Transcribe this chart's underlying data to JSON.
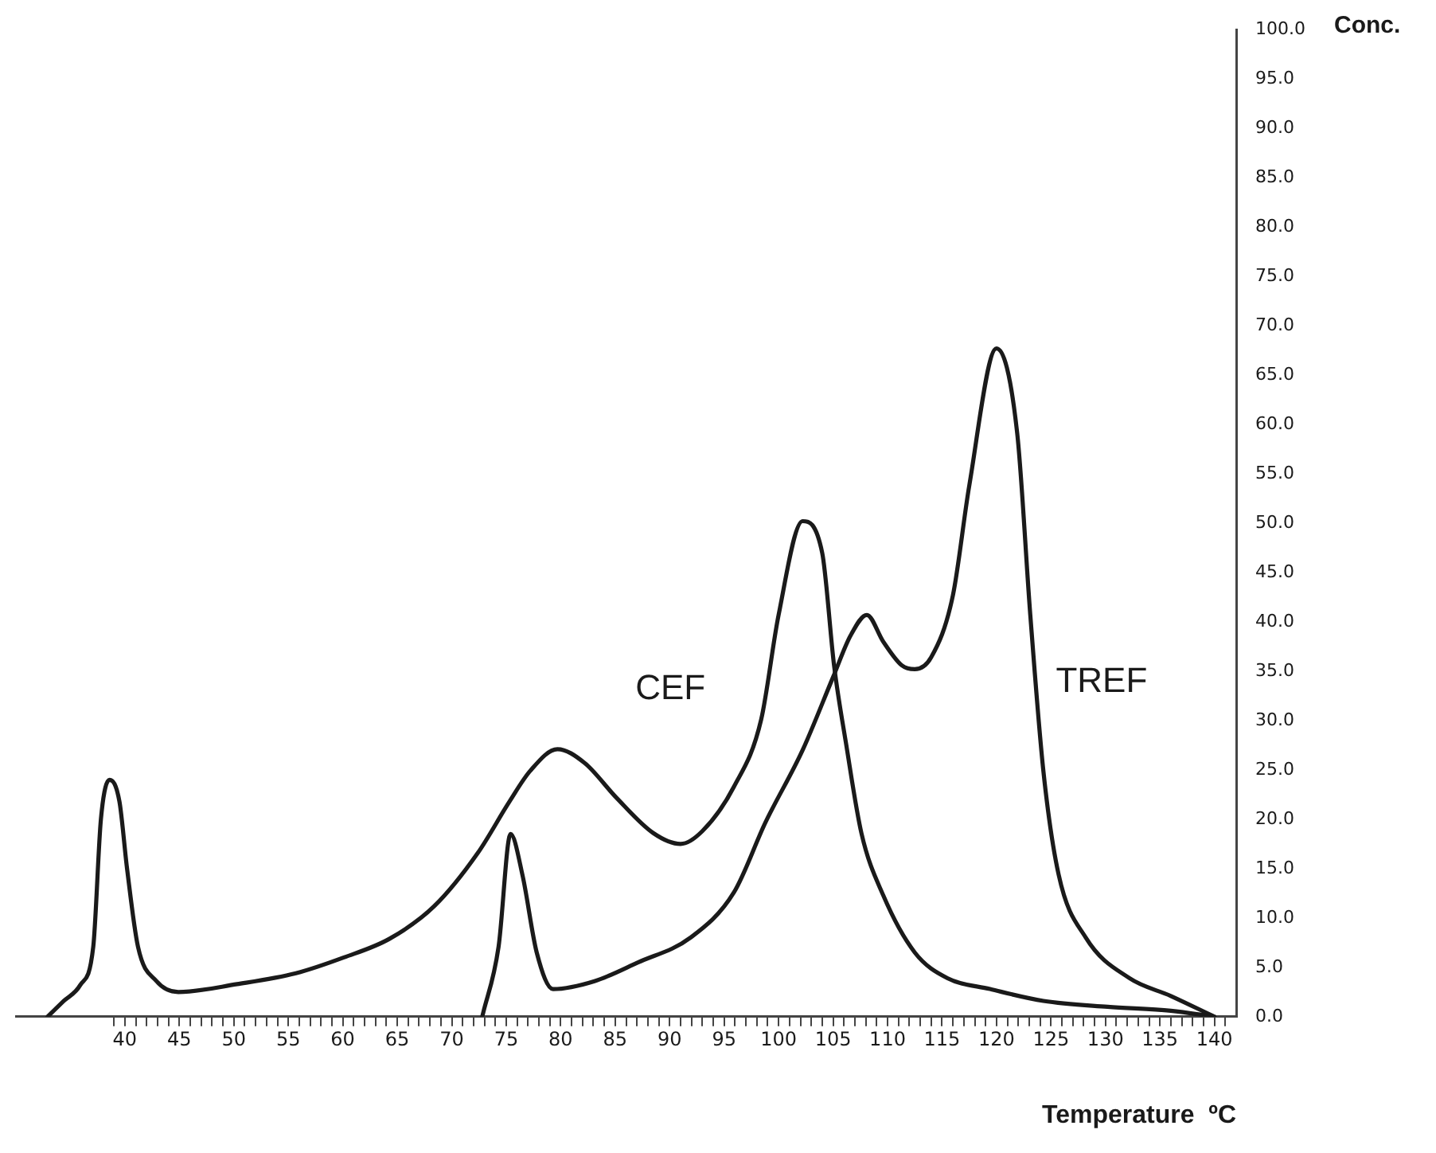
{
  "chart_data": {
    "type": "line",
    "xlabel": "Temperature  ºC",
    "ylabel": "Conc.",
    "marker": "none",
    "xlim": [
      30,
      142
    ],
    "ylim": [
      0,
      100
    ],
    "xticks": [
      {
        "value": 39,
        "label": null
      },
      40,
      {
        "value": 41,
        "label": null
      },
      {
        "value": 42,
        "label": null
      },
      {
        "value": 43,
        "label": null
      },
      {
        "value": 44,
        "label": null
      },
      45,
      {
        "value": 46,
        "label": null
      },
      {
        "value": 47,
        "label": null
      },
      {
        "value": 48,
        "label": null
      },
      {
        "value": 49,
        "label": null
      },
      50,
      {
        "value": 51,
        "label": null
      },
      {
        "value": 52,
        "label": null
      },
      {
        "value": 53,
        "label": null
      },
      {
        "value": 54,
        "label": null
      },
      55,
      {
        "value": 56,
        "label": null
      },
      {
        "value": 57,
        "label": null
      },
      {
        "value": 58,
        "label": null
      },
      {
        "value": 59,
        "label": null
      },
      60,
      {
        "value": 61,
        "label": null
      },
      {
        "value": 62,
        "label": null
      },
      {
        "value": 63,
        "label": null
      },
      {
        "value": 64,
        "label": null
      },
      65,
      {
        "value": 66,
        "label": null
      },
      {
        "value": 67,
        "label": null
      },
      {
        "value": 68,
        "label": null
      },
      {
        "value": 69,
        "label": null
      },
      70,
      {
        "value": 71,
        "label": null
      },
      {
        "value": 72,
        "label": null
      },
      {
        "value": 73,
        "label": null
      },
      {
        "value": 74,
        "label": null
      },
      75,
      {
        "value": 76,
        "label": null
      },
      {
        "value": 77,
        "label": null
      },
      {
        "value": 78,
        "label": null
      },
      {
        "value": 79,
        "label": null
      },
      80,
      {
        "value": 81,
        "label": null
      },
      {
        "value": 82,
        "label": null
      },
      {
        "value": 83,
        "label": null
      },
      {
        "value": 84,
        "label": null
      },
      85,
      {
        "value": 86,
        "label": null
      },
      {
        "value": 87,
        "label": null
      },
      {
        "value": 88,
        "label": null
      },
      {
        "value": 89,
        "label": null
      },
      90,
      {
        "value": 91,
        "label": null
      },
      {
        "value": 92,
        "label": null
      },
      {
        "value": 93,
        "label": null
      },
      {
        "value": 94,
        "label": null
      },
      95,
      {
        "value": 96,
        "label": null
      },
      {
        "value": 97,
        "label": null
      },
      {
        "value": 98,
        "label": null
      },
      {
        "value": 99,
        "label": null
      },
      100,
      {
        "value": 101,
        "label": null
      },
      {
        "value": 102,
        "label": null
      },
      {
        "value": 103,
        "label": null
      },
      {
        "value": 104,
        "label": null
      },
      105,
      {
        "value": 106,
        "label": null
      },
      {
        "value": 107,
        "label": null
      },
      {
        "value": 108,
        "label": null
      },
      {
        "value": 109,
        "label": null
      },
      110,
      {
        "value": 111,
        "label": null
      },
      {
        "value": 112,
        "label": null
      },
      {
        "value": 113,
        "label": null
      },
      {
        "value": 114,
        "label": null
      },
      115,
      {
        "value": 116,
        "label": null
      },
      {
        "value": 117,
        "label": null
      },
      {
        "value": 118,
        "label": null
      },
      {
        "value": 119,
        "label": null
      },
      120,
      {
        "value": 121,
        "label": null
      },
      {
        "value": 122,
        "label": null
      },
      {
        "value": 123,
        "label": null
      },
      {
        "value": 124,
        "label": null
      },
      125,
      {
        "value": 126,
        "label": null
      },
      {
        "value": 127,
        "label": null
      },
      {
        "value": 128,
        "label": null
      },
      {
        "value": 129,
        "label": null
      },
      130,
      {
        "value": 131,
        "label": null
      },
      {
        "value": 132,
        "label": null
      },
      {
        "value": 133,
        "label": null
      },
      {
        "value": 134,
        "label": null
      },
      135,
      {
        "value": 136,
        "label": null
      },
      {
        "value": 137,
        "label": null
      },
      {
        "value": 138,
        "label": null
      },
      {
        "value": 139,
        "label": null
      },
      140,
      {
        "value": 141,
        "label": null
      }
    ],
    "yticks": [
      {
        "value": 0,
        "label": "0.0"
      },
      {
        "value": 5,
        "label": "5.0"
      },
      {
        "value": 10,
        "label": "10.0"
      },
      {
        "value": 15,
        "label": "15.0"
      },
      {
        "value": 20,
        "label": "20.0"
      },
      {
        "value": 25,
        "label": "25.0"
      },
      {
        "value": 30,
        "label": "30.0"
      },
      {
        "value": 35,
        "label": "35.0"
      },
      {
        "value": 40,
        "label": "40.0"
      },
      {
        "value": 45,
        "label": "45.0"
      },
      {
        "value": 50,
        "label": "50.0"
      },
      {
        "value": 55,
        "label": "55.0"
      },
      {
        "value": 60,
        "label": "60.0"
      },
      {
        "value": 65,
        "label": "65.0"
      },
      {
        "value": 70,
        "label": "70.0"
      },
      {
        "value": 75,
        "label": "75.0"
      },
      {
        "value": 80,
        "label": "80.0"
      },
      {
        "value": 85,
        "label": "85.0"
      },
      {
        "value": 90,
        "label": "90.0"
      },
      {
        "value": 95,
        "label": "95.0"
      },
      {
        "value": 100,
        "label": "100.0"
      }
    ],
    "series": [
      {
        "name": "CEF",
        "color": "#1a1a1a",
        "x": [
          32.9,
          34.4,
          35.9,
          37.1,
          37.8,
          38.6,
          39.5,
          40.2,
          41.2,
          42.9,
          44.9,
          50.3,
          55.7,
          60.1,
          64.3,
          68.4,
          72.4,
          75.3,
          77.2,
          79.7,
          82.2,
          85.1,
          88.5,
          91,
          93,
          95.9,
          98.4,
          100,
          102.2,
          104,
          105.1,
          106.2,
          107.6,
          109.6,
          112.5,
          115.5,
          119.4,
          124.3,
          130.2,
          136,
          140
        ],
        "values": [
          0,
          1.6,
          3.2,
          7.1,
          20,
          24,
          21.8,
          15,
          7.1,
          3.6,
          2.5,
          3.3,
          4.4,
          6,
          7.9,
          11.2,
          16.6,
          21.8,
          24.9,
          27.1,
          25.7,
          22.2,
          18.6,
          17.5,
          18.8,
          23.3,
          30.1,
          40.7,
          50.2,
          47,
          35.5,
          27.6,
          18.6,
          12.3,
          6.5,
          3.9,
          2.8,
          1.6,
          1,
          0.6,
          0
        ]
      },
      {
        "name": "TREF",
        "color": "#1a1a1a",
        "x": [
          72.8,
          74.3,
          75.4,
          76.5,
          77.8,
          79.3,
          83.1,
          87.1,
          91.9,
          95.9,
          98.8,
          102.2,
          105,
          106.6,
          108.1,
          109.6,
          111.3,
          112.5,
          114,
          116,
          117.5,
          120,
          121.9,
          123.1,
          124.3,
          125.7,
          128.2,
          132.2,
          136,
          140
        ],
        "values": [
          0,
          7.1,
          18.5,
          14.3,
          6.5,
          2.8,
          3.6,
          5.5,
          8,
          12.6,
          19.7,
          27,
          34.4,
          38.6,
          40.7,
          38,
          35.6,
          35.2,
          36.4,
          42.7,
          53.8,
          67.7,
          59.1,
          40.7,
          24.9,
          14.4,
          8,
          3.9,
          2.1,
          0
        ]
      }
    ]
  }
}
